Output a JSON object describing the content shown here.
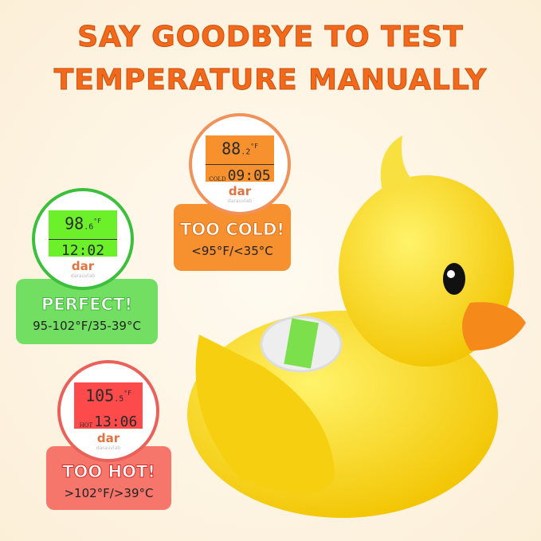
{
  "headline": {
    "line1": "SAY GOODBYE TO TEST",
    "line2": "TEMPERATURE MANUALLY"
  },
  "brand": {
    "logo": "dar",
    "sub": "darauvlab"
  },
  "states": {
    "cold": {
      "temp": "88",
      "decimal": "2",
      "unit": "°F",
      "time": "09:05",
      "tag": "COLD",
      "status": "TOO COLD!",
      "range": "<95°F/<35°C",
      "color": "#f7902f"
    },
    "perfect": {
      "temp": "98",
      "decimal": "6",
      "unit": "°F",
      "time": "12:02",
      "status": "PERFECT!",
      "range": "95-102°F/35-39°C",
      "color": "#72df62"
    },
    "hot": {
      "temp": "105",
      "decimal": "5",
      "unit": "°F",
      "time": "13:06",
      "tag": "HOT",
      "status": "TOO HOT!",
      "range": ">102°F/>39°C",
      "color": "#f7766c"
    }
  }
}
